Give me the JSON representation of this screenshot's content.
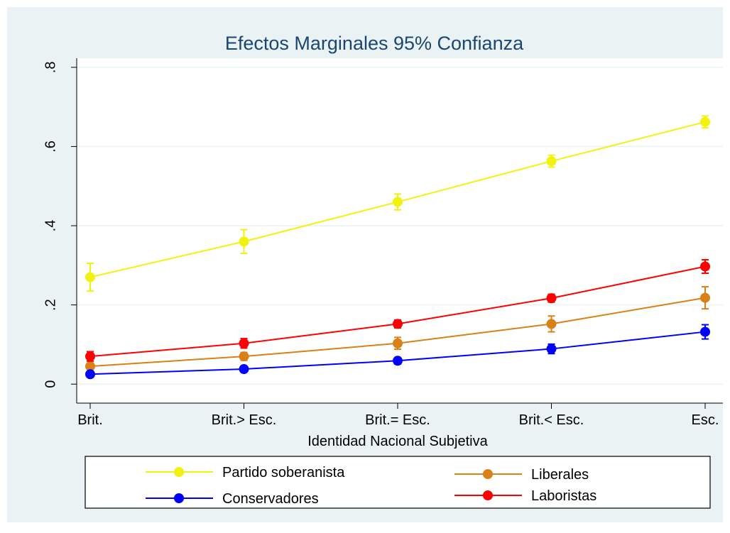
{
  "chart_data": {
    "type": "line",
    "title": "Efectos Marginales 95% Confianza",
    "xlabel": "Identidad Nacional Subjetiva",
    "categories": [
      "Brit.",
      "Brit.> Esc.",
      "Brit.= Esc.",
      "Brit.< Esc.",
      "Esc."
    ],
    "series": [
      {
        "name": "Partido soberanista",
        "color": "#f2f20f",
        "values": [
          0.27,
          0.36,
          0.46,
          0.563,
          0.662
        ],
        "errors": [
          0.035,
          0.03,
          0.02,
          0.015,
          0.015
        ]
      },
      {
        "name": "Liberales",
        "color": "#d98016",
        "values": [
          0.045,
          0.07,
          0.103,
          0.152,
          0.218
        ],
        "errors": [
          0.008,
          0.01,
          0.015,
          0.02,
          0.028
        ]
      },
      {
        "name": "Conservadores",
        "color": "#0000ff",
        "values": [
          0.025,
          0.038,
          0.059,
          0.089,
          0.132
        ],
        "errors": [
          0.005,
          0.006,
          0.008,
          0.012,
          0.018
        ]
      },
      {
        "name": "Laboristas",
        "color": "#ff0000",
        "values": [
          0.07,
          0.103,
          0.152,
          0.217,
          0.297
        ],
        "errors": [
          0.012,
          0.012,
          0.01,
          0.01,
          0.017
        ]
      }
    ],
    "ylim": [
      -0.048,
      0.823
    ],
    "yticks": [
      0,
      {
        "value": 0.2,
        "label": ".2"
      },
      {
        "value": 0.4,
        "label": ".4"
      },
      {
        "value": 0.6,
        "label": ".6"
      },
      {
        "value": 0.8,
        "label": ".8"
      }
    ],
    "grid": true,
    "legend": "bottom"
  }
}
